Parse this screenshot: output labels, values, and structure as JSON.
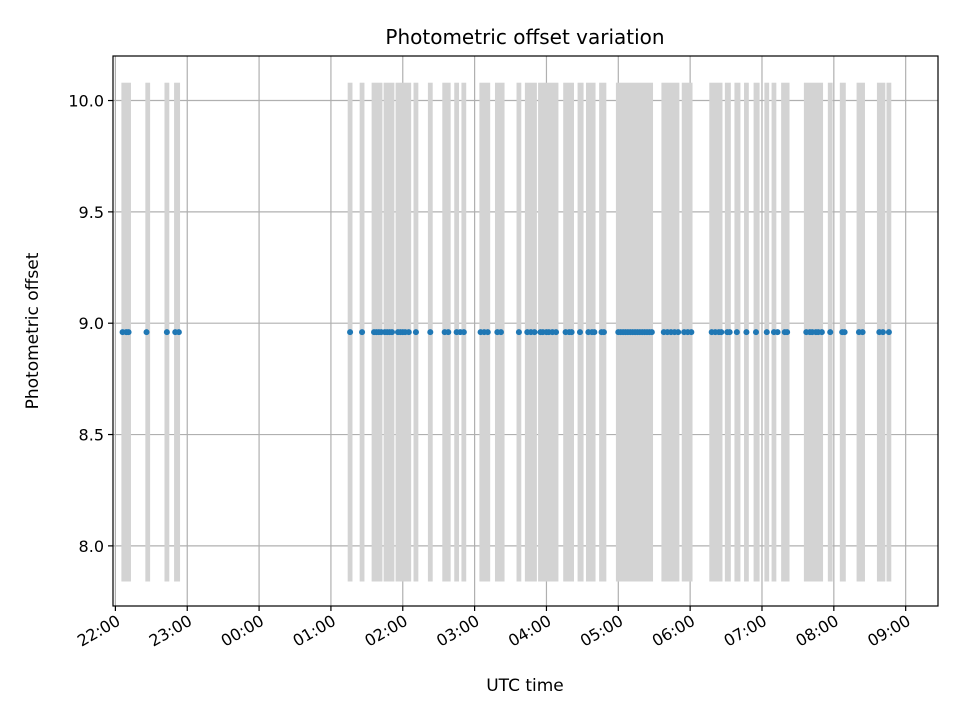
{
  "chart_data": {
    "type": "scatter",
    "title": "Photometric offset variation",
    "xlabel": "UTC time",
    "ylabel": "Photometric offset",
    "x_axis": {
      "kind": "time",
      "range": [
        "21:58",
        "09:27"
      ],
      "ticks": [
        "22:00",
        "23:00",
        "00:00",
        "01:00",
        "02:00",
        "03:00",
        "04:00",
        "05:00",
        "06:00",
        "07:00",
        "08:00",
        "09:00"
      ]
    },
    "y_axis": {
      "range": [
        7.73,
        10.2
      ],
      "ticks": [
        8.0,
        8.5,
        9.0,
        9.5,
        10.0
      ],
      "tick_labels": [
        "8.0",
        "8.5",
        "9.0",
        "9.5",
        "10.0"
      ]
    },
    "grid": true,
    "colors": {
      "points": "#1f77b4",
      "bands": "#d3d3d3",
      "grid": "#b0b0b0"
    },
    "band_y_range": [
      7.84,
      10.08
    ],
    "bands": [
      [
        "22:05",
        "22:13"
      ],
      [
        "22:25",
        "22:29"
      ],
      [
        "22:41",
        "22:45"
      ],
      [
        "22:49",
        "22:54"
      ],
      [
        "01:14",
        "01:18"
      ],
      [
        "01:24",
        "01:28"
      ],
      [
        "01:34",
        "01:43"
      ],
      [
        "01:44",
        "01:53"
      ],
      [
        "01:54",
        "02:07"
      ],
      [
        "02:09",
        "02:13"
      ],
      [
        "02:21",
        "02:25"
      ],
      [
        "02:33",
        "02:40"
      ],
      [
        "02:43",
        "02:47"
      ],
      [
        "02:49",
        "02:53"
      ],
      [
        "03:04",
        "03:13"
      ],
      [
        "03:17",
        "03:25"
      ],
      [
        "03:35",
        "03:39"
      ],
      [
        "03:42",
        "03:52"
      ],
      [
        "03:53",
        "04:10"
      ],
      [
        "04:14",
        "04:23"
      ],
      [
        "04:26",
        "04:31"
      ],
      [
        "04:33",
        "04:41"
      ],
      [
        "04:44",
        "04:50"
      ],
      [
        "04:58",
        "05:29"
      ],
      [
        "05:36",
        "05:51"
      ],
      [
        "05:53",
        "06:02"
      ],
      [
        "06:16",
        "06:27"
      ],
      [
        "06:29",
        "06:34"
      ],
      [
        "06:37",
        "06:42"
      ],
      [
        "06:45",
        "06:49"
      ],
      [
        "06:53",
        "06:58"
      ],
      [
        "07:02",
        "07:06"
      ],
      [
        "07:08",
        "07:12"
      ],
      [
        "07:16",
        "07:23"
      ],
      [
        "07:35",
        "07:51"
      ],
      [
        "07:55",
        "07:59"
      ],
      [
        "08:05",
        "08:10"
      ],
      [
        "08:19",
        "08:26"
      ],
      [
        "08:36",
        "08:43"
      ],
      [
        "08:44",
        "08:48"
      ]
    ],
    "points": {
      "y": 8.96,
      "x": [
        "22:06",
        "22:09",
        "22:11",
        "22:26",
        "22:43",
        "22:50",
        "22:53",
        "01:16",
        "01:26",
        "01:36",
        "01:38",
        "01:40",
        "01:42",
        "01:45",
        "01:47",
        "01:49",
        "01:51",
        "01:56",
        "01:58",
        "02:00",
        "02:02",
        "02:05",
        "02:11",
        "02:23",
        "02:35",
        "02:38",
        "02:45",
        "02:48",
        "02:51",
        "03:05",
        "03:08",
        "03:11",
        "03:19",
        "03:22",
        "03:37",
        "03:44",
        "03:47",
        "03:50",
        "03:55",
        "03:57",
        "04:00",
        "04:02",
        "04:05",
        "04:08",
        "04:16",
        "04:19",
        "04:21",
        "04:28",
        "04:35",
        "04:38",
        "04:40",
        "04:46",
        "04:48",
        "05:00",
        "05:02",
        "05:04",
        "05:06",
        "05:08",
        "05:10",
        "05:12",
        "05:14",
        "05:16",
        "05:18",
        "05:20",
        "05:22",
        "05:24",
        "05:26",
        "05:28",
        "05:38",
        "05:41",
        "05:44",
        "05:47",
        "05:50",
        "05:55",
        "05:58",
        "06:01",
        "06:18",
        "06:21",
        "06:24",
        "06:26",
        "06:31",
        "06:33",
        "06:39",
        "06:47",
        "06:55",
        "07:04",
        "07:10",
        "07:13",
        "07:19",
        "07:21",
        "07:37",
        "07:40",
        "07:42",
        "07:45",
        "07:47",
        "07:50",
        "07:57",
        "08:07",
        "08:09",
        "08:21",
        "08:24",
        "08:38",
        "08:41",
        "08:46"
      ]
    }
  }
}
